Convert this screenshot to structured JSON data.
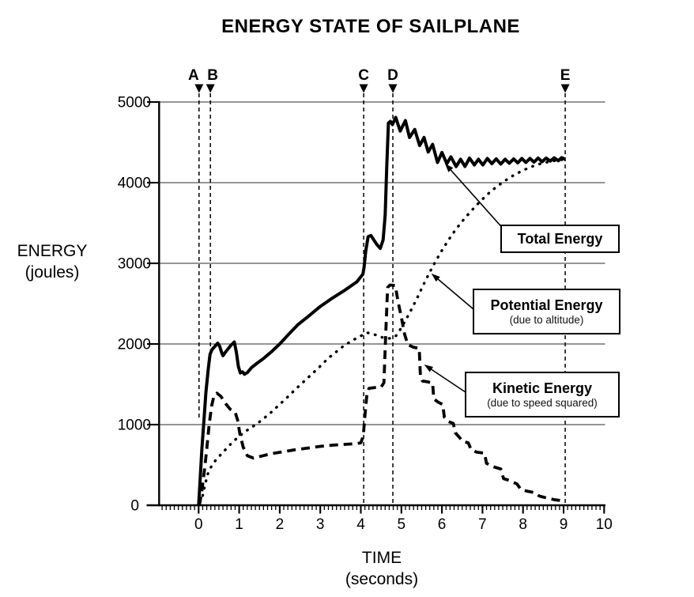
{
  "title": "ENERGY STATE OF SAILPLANE",
  "y_axis": {
    "label_line1": "ENERGY",
    "label_line2": "(joules)",
    "ticks": [
      0,
      1000,
      2000,
      3000,
      4000,
      5000
    ]
  },
  "x_axis": {
    "label_line1": "TIME",
    "label_line2": "(seconds)",
    "ticks": [
      0,
      1,
      2,
      3,
      4,
      5,
      6,
      7,
      8,
      9,
      10
    ],
    "minor_step": 0.1
  },
  "markers": [
    {
      "label": "A",
      "t": 0.01,
      "line_to_energy": 1069,
      "label_dx": -7
    },
    {
      "label": "B",
      "t": 0.29,
      "line_to_energy": 1922,
      "label_dx": 3
    },
    {
      "label": "C",
      "t": 4.07,
      "line_to_energy": 0,
      "label_dx": 0
    },
    {
      "label": "D",
      "t": 4.79,
      "line_to_energy": 0,
      "label_dx": 0
    },
    {
      "label": "E",
      "t": 9.04,
      "line_to_energy": 0,
      "label_dx": 0
    }
  ],
  "legend": [
    {
      "title": "Total Energy",
      "subtitle": ""
    },
    {
      "title": "Potential Energy",
      "subtitle": "(due to altitude)"
    },
    {
      "title": "Kinetic Energy",
      "subtitle": "(due to speed squared)"
    }
  ],
  "colors": {
    "ink": "#000000",
    "background": "#ffffff",
    "grid": "#2b2b2b"
  },
  "chart_data": {
    "type": "line",
    "title": "ENERGY STATE OF SAILPLANE",
    "xlabel": "TIME (seconds)",
    "ylabel": "ENERGY (joules)",
    "xlim": [
      -1,
      10
    ],
    "ylim": [
      0,
      5000
    ],
    "grid": "horizontal",
    "legend_position": "right-overlay-boxes",
    "series": [
      {
        "id": "total-energy",
        "name": "Total Energy",
        "style": "solid",
        "points": [
          [
            0,
            0
          ],
          [
            0.04,
            350
          ],
          [
            0.08,
            700
          ],
          [
            0.13,
            1050
          ],
          [
            0.18,
            1400
          ],
          [
            0.24,
            1700
          ],
          [
            0.28,
            1870
          ],
          [
            0.33,
            1930
          ],
          [
            0.4,
            1970
          ],
          [
            0.47,
            2010
          ],
          [
            0.52,
            1970
          ],
          [
            0.57,
            1890
          ],
          [
            0.6,
            1855
          ],
          [
            0.65,
            1890
          ],
          [
            0.72,
            1935
          ],
          [
            0.8,
            1985
          ],
          [
            0.88,
            2025
          ],
          [
            0.93,
            1900
          ],
          [
            0.98,
            1720
          ],
          [
            1.03,
            1640
          ],
          [
            1.08,
            1655
          ],
          [
            1.13,
            1625
          ],
          [
            1.2,
            1645
          ],
          [
            1.3,
            1705
          ],
          [
            1.45,
            1765
          ],
          [
            1.6,
            1820
          ],
          [
            1.8,
            1905
          ],
          [
            2.0,
            2000
          ],
          [
            2.2,
            2110
          ],
          [
            2.45,
            2240
          ],
          [
            2.7,
            2340
          ],
          [
            3.0,
            2465
          ],
          [
            3.3,
            2570
          ],
          [
            3.6,
            2665
          ],
          [
            3.9,
            2770
          ],
          [
            4.05,
            2865
          ],
          [
            4.08,
            2950
          ],
          [
            4.12,
            3150
          ],
          [
            4.18,
            3330
          ],
          [
            4.25,
            3345
          ],
          [
            4.32,
            3290
          ],
          [
            4.4,
            3230
          ],
          [
            4.48,
            3185
          ],
          [
            4.55,
            3290
          ],
          [
            4.6,
            3600
          ],
          [
            4.64,
            4200
          ],
          [
            4.68,
            4740
          ],
          [
            4.73,
            4760
          ],
          [
            4.78,
            4720
          ],
          [
            4.86,
            4810
          ],
          [
            4.97,
            4640
          ],
          [
            5.1,
            4770
          ],
          [
            5.2,
            4560
          ],
          [
            5.33,
            4660
          ],
          [
            5.45,
            4460
          ],
          [
            5.56,
            4560
          ],
          [
            5.66,
            4380
          ],
          [
            5.77,
            4475
          ],
          [
            5.89,
            4250
          ],
          [
            6.0,
            4375
          ],
          [
            6.12,
            4235
          ],
          [
            6.22,
            4320
          ],
          [
            6.35,
            4200
          ],
          [
            6.46,
            4290
          ],
          [
            6.57,
            4200
          ],
          [
            6.68,
            4305
          ],
          [
            6.8,
            4220
          ],
          [
            6.9,
            4290
          ],
          [
            7.01,
            4220
          ],
          [
            7.12,
            4300
          ],
          [
            7.23,
            4235
          ],
          [
            7.34,
            4295
          ],
          [
            7.45,
            4230
          ],
          [
            7.56,
            4290
          ],
          [
            7.66,
            4240
          ],
          [
            7.77,
            4295
          ],
          [
            7.87,
            4245
          ],
          [
            7.97,
            4300
          ],
          [
            8.07,
            4250
          ],
          [
            8.17,
            4300
          ],
          [
            8.27,
            4255
          ],
          [
            8.37,
            4305
          ],
          [
            8.47,
            4260
          ],
          [
            8.57,
            4305
          ],
          [
            8.67,
            4268
          ],
          [
            8.77,
            4308
          ],
          [
            8.87,
            4272
          ],
          [
            8.95,
            4310
          ],
          [
            9.04,
            4290
          ]
        ]
      },
      {
        "id": "potential-energy",
        "name": "Potential Energy (due to altitude)",
        "style": "dotted",
        "points": [
          [
            0.1,
            120
          ],
          [
            0.16,
            260
          ],
          [
            0.22,
            380
          ],
          [
            0.3,
            470
          ],
          [
            0.4,
            545
          ],
          [
            0.55,
            630
          ],
          [
            0.7,
            710
          ],
          [
            0.85,
            790
          ],
          [
            1.0,
            855
          ],
          [
            1.15,
            915
          ],
          [
            1.3,
            965
          ],
          [
            1.45,
            1015
          ],
          [
            1.6,
            1075
          ],
          [
            1.75,
            1135
          ],
          [
            1.9,
            1205
          ],
          [
            2.05,
            1275
          ],
          [
            2.2,
            1345
          ],
          [
            2.35,
            1420
          ],
          [
            2.5,
            1490
          ],
          [
            2.65,
            1560
          ],
          [
            2.8,
            1630
          ],
          [
            2.95,
            1700
          ],
          [
            3.1,
            1775
          ],
          [
            3.25,
            1845
          ],
          [
            3.4,
            1905
          ],
          [
            3.55,
            1965
          ],
          [
            3.7,
            2015
          ],
          [
            3.85,
            2060
          ],
          [
            4.0,
            2100
          ],
          [
            4.15,
            2140
          ],
          [
            4.3,
            2125
          ],
          [
            4.45,
            2095
          ],
          [
            4.6,
            2070
          ],
          [
            4.75,
            2070
          ],
          [
            4.85,
            2090
          ],
          [
            4.95,
            2160
          ],
          [
            5.1,
            2290
          ],
          [
            5.25,
            2430
          ],
          [
            5.4,
            2580
          ],
          [
            5.55,
            2740
          ],
          [
            5.7,
            2890
          ],
          [
            5.85,
            3030
          ],
          [
            6.0,
            3160
          ],
          [
            6.15,
            3280
          ],
          [
            6.3,
            3390
          ],
          [
            6.45,
            3490
          ],
          [
            6.6,
            3580
          ],
          [
            6.75,
            3665
          ],
          [
            6.9,
            3745
          ],
          [
            7.05,
            3820
          ],
          [
            7.2,
            3890
          ],
          [
            7.35,
            3950
          ],
          [
            7.5,
            4005
          ],
          [
            7.65,
            4055
          ],
          [
            7.8,
            4100
          ],
          [
            7.95,
            4140
          ],
          [
            8.1,
            4175
          ],
          [
            8.25,
            4205
          ],
          [
            8.4,
            4230
          ],
          [
            8.55,
            4250
          ],
          [
            8.7,
            4265
          ],
          [
            8.85,
            4278
          ],
          [
            9.04,
            4290
          ]
        ]
      },
      {
        "id": "kinetic-energy",
        "name": "Kinetic Energy (due to speed squared)",
        "style": "dashed",
        "points": [
          [
            0.02,
            0
          ],
          [
            0.08,
            180
          ],
          [
            0.14,
            420
          ],
          [
            0.2,
            700
          ],
          [
            0.26,
            1000
          ],
          [
            0.32,
            1230
          ],
          [
            0.38,
            1360
          ],
          [
            0.45,
            1390
          ],
          [
            0.55,
            1350
          ],
          [
            0.65,
            1270
          ],
          [
            0.78,
            1190
          ],
          [
            0.9,
            1155
          ],
          [
            0.96,
            1060
          ],
          [
            1.02,
            880
          ],
          [
            1.1,
            720
          ],
          [
            1.2,
            615
          ],
          [
            1.35,
            585
          ],
          [
            1.55,
            610
          ],
          [
            1.8,
            640
          ],
          [
            2.1,
            665
          ],
          [
            2.4,
            690
          ],
          [
            2.7,
            710
          ],
          [
            3.0,
            730
          ],
          [
            3.3,
            745
          ],
          [
            3.6,
            755
          ],
          [
            3.9,
            765
          ],
          [
            4.0,
            775
          ],
          [
            4.06,
            860
          ],
          [
            4.1,
            1100
          ],
          [
            4.15,
            1380
          ],
          [
            4.2,
            1450
          ],
          [
            4.35,
            1460
          ],
          [
            4.5,
            1465
          ],
          [
            4.57,
            1520
          ],
          [
            4.62,
            2200
          ],
          [
            4.66,
            2700
          ],
          [
            4.72,
            2730
          ],
          [
            4.85,
            2725
          ],
          [
            4.92,
            2520
          ],
          [
            5.0,
            2330
          ],
          [
            5.08,
            2120
          ],
          [
            5.16,
            1990
          ],
          [
            5.3,
            1960
          ],
          [
            5.44,
            1945
          ],
          [
            5.47,
            1600
          ],
          [
            5.52,
            1540
          ],
          [
            5.65,
            1530
          ],
          [
            5.77,
            1515
          ],
          [
            5.8,
            1320
          ],
          [
            5.9,
            1280
          ],
          [
            6.02,
            1250
          ],
          [
            6.06,
            1090
          ],
          [
            6.15,
            1040
          ],
          [
            6.28,
            1015
          ],
          [
            6.33,
            900
          ],
          [
            6.45,
            830
          ],
          [
            6.52,
            790
          ],
          [
            6.65,
            775
          ],
          [
            6.72,
            690
          ],
          [
            6.85,
            660
          ],
          [
            7.05,
            645
          ],
          [
            7.1,
            520
          ],
          [
            7.25,
            480
          ],
          [
            7.45,
            450
          ],
          [
            7.52,
            330
          ],
          [
            7.65,
            310
          ],
          [
            7.85,
            265
          ],
          [
            7.95,
            195
          ],
          [
            8.1,
            175
          ],
          [
            8.3,
            155
          ],
          [
            8.4,
            115
          ],
          [
            8.55,
            95
          ],
          [
            8.75,
            72
          ],
          [
            8.9,
            60
          ],
          [
            9.04,
            45
          ]
        ]
      }
    ]
  }
}
